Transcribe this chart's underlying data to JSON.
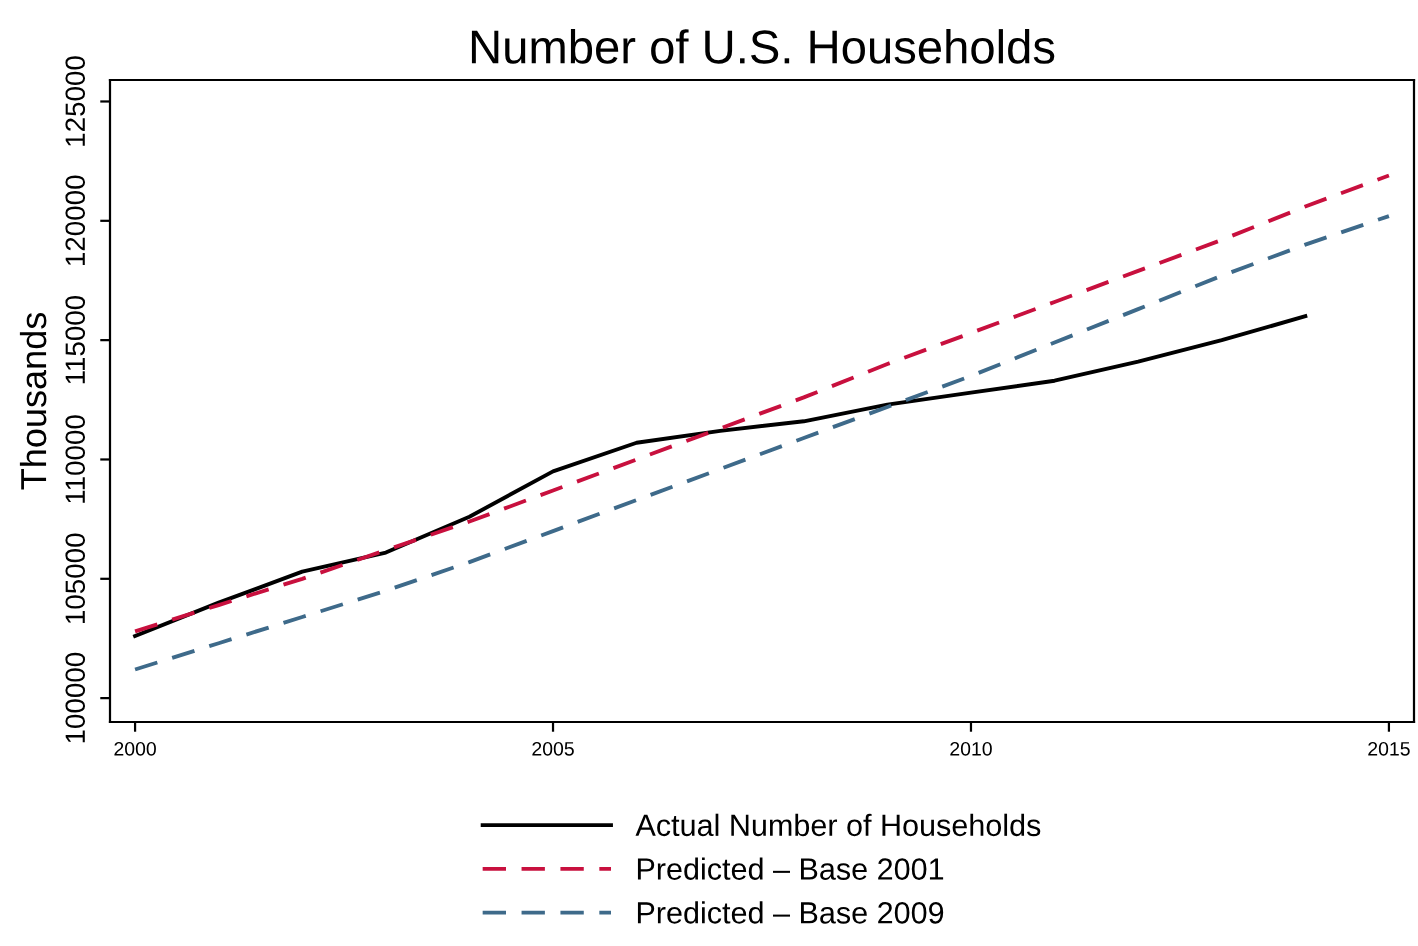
{
  "chart_data": {
    "type": "line",
    "title": "Number of U.S. Households",
    "ylabel": "Thousands",
    "x": [
      2000,
      2001,
      2002,
      2003,
      2004,
      2005,
      2006,
      2007,
      2008,
      2009,
      2010,
      2011,
      2012,
      2013,
      2014,
      2015
    ],
    "series": [
      {
        "name": "Actual Number of Households",
        "color": "#000000",
        "line_style": "solid",
        "values": [
          102600,
          104000,
          105300,
          106100,
          107600,
          109500,
          110700,
          111200,
          111600,
          112300,
          112800,
          113300,
          114100,
          115000,
          116000,
          null
        ]
      },
      {
        "name": "Predicted – Base 2001",
        "color": "#c8103e",
        "line_style": "dashed",
        "values": [
          102800,
          103900,
          105000,
          106200,
          107400,
          108700,
          110000,
          111300,
          112600,
          114000,
          115300,
          116600,
          117900,
          119200,
          120600,
          121900
        ]
      },
      {
        "name": "Predicted – Base 2009",
        "color": "#3e6a8a",
        "line_style": "dashed",
        "values": [
          101200,
          102300,
          103400,
          104500,
          105700,
          107000,
          108300,
          109600,
          110900,
          112200,
          113500,
          114900,
          116300,
          117700,
          119000,
          120200
        ]
      }
    ],
    "xlim": [
      1999.7,
      2015.3
    ],
    "xticks": [
      2000,
      2005,
      2010,
      2015
    ],
    "ylim": [
      99000,
      125900
    ],
    "yticks": [
      100000,
      105000,
      110000,
      115000,
      120000,
      125000
    ],
    "grid": false,
    "legend": "bottom",
    "marker": "none"
  }
}
